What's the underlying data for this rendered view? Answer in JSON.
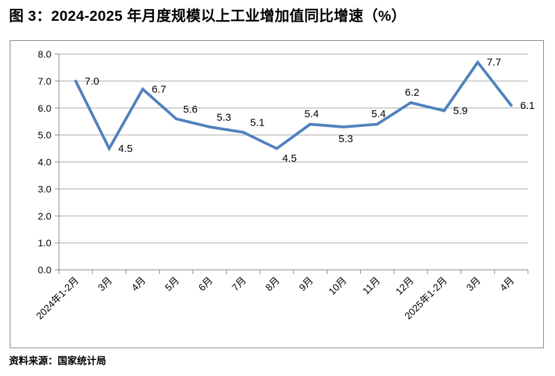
{
  "title": "图 3：2024-2025 年月度规模以上工业增加值同比增速（%）",
  "source": "资料来源：国家统计局",
  "chart_data": {
    "type": "line",
    "title": "图 3：2024-2025 年月度规模以上工业增加值同比增速（%）",
    "xlabel": "",
    "ylabel": "",
    "categories": [
      "2024年1-2月",
      "3月",
      "4月",
      "5月",
      "6月",
      "7月",
      "8月",
      "9月",
      "10月",
      "11月",
      "12月",
      "2025年1-2月",
      "3月",
      "4月"
    ],
    "values": [
      7.0,
      4.5,
      6.7,
      5.6,
      5.3,
      5.1,
      4.5,
      5.4,
      5.3,
      5.4,
      6.2,
      5.9,
      7.7,
      6.1
    ],
    "ylim": [
      0.0,
      8.0
    ],
    "ytick_step": 1.0,
    "ytick_labels": [
      "0.0",
      "1.0",
      "2.0",
      "3.0",
      "4.0",
      "5.0",
      "6.0",
      "7.0",
      "8.0"
    ],
    "grid": true,
    "legend_position": "none",
    "x_label_rotation_deg": 45,
    "line_color": "#4F81BD",
    "grid_color": "#A6A6A6",
    "axis_color": "#808080",
    "label_color": "#000000",
    "line_width": 4,
    "data_label_positions": [
      "right",
      "right",
      "right",
      "above-right",
      "above-right",
      "above-right",
      "below-right",
      "above",
      "below",
      "above",
      "above",
      "right",
      "right",
      "right"
    ]
  }
}
